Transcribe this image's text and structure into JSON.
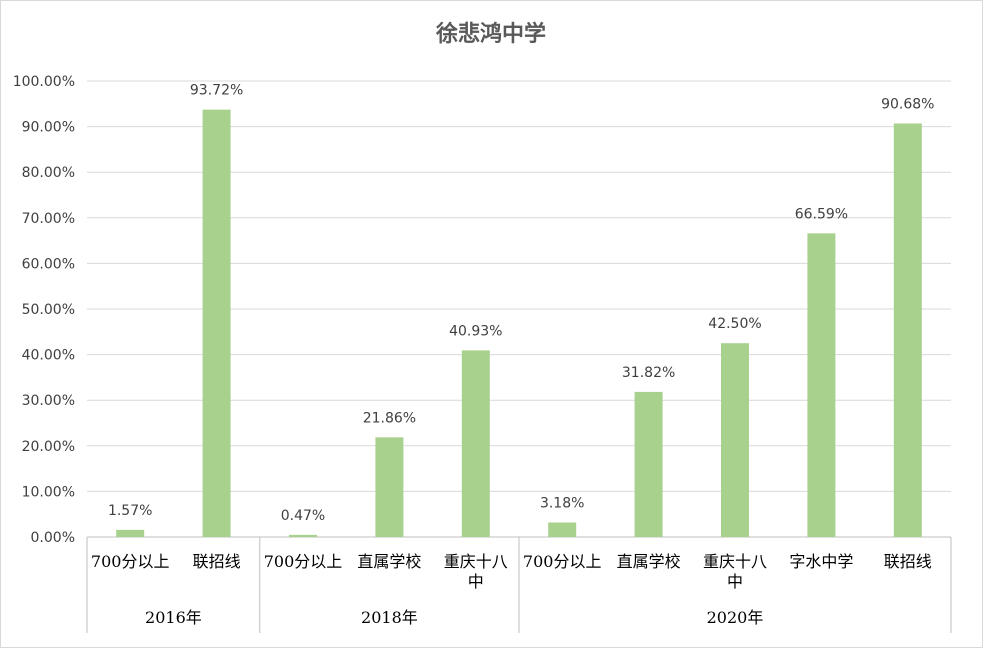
{
  "chart_data": {
    "type": "bar",
    "title": "徐悲鸿中学",
    "ylim": [
      0,
      100
    ],
    "yticks": [
      "0.00%",
      "10.00%",
      "20.00%",
      "30.00%",
      "40.00%",
      "50.00%",
      "60.00%",
      "70.00%",
      "80.00%",
      "90.00%",
      "100.00%"
    ],
    "grid": true,
    "bar_color": "#a9d18e",
    "groups": [
      {
        "label": "2016年",
        "categories": [
          [
            "700分以上"
          ],
          [
            "联招线"
          ]
        ],
        "values": [
          1.57,
          93.72
        ],
        "value_labels": [
          "1.57%",
          "93.72%"
        ]
      },
      {
        "label": "2018年",
        "categories": [
          [
            "700分以上"
          ],
          [
            "直属学校"
          ],
          [
            "重庆十八",
            "中"
          ]
        ],
        "values": [
          0.47,
          21.86,
          40.93
        ],
        "value_labels": [
          "0.47%",
          "21.86%",
          "40.93%"
        ]
      },
      {
        "label": "2020年",
        "categories": [
          [
            "700分以上"
          ],
          [
            "直属学校"
          ],
          [
            "重庆十八",
            "中"
          ],
          [
            "字水中学"
          ],
          [
            "联招线"
          ]
        ],
        "values": [
          3.18,
          31.82,
          42.5,
          66.59,
          90.68
        ],
        "value_labels": [
          "3.18%",
          "31.82%",
          "42.50%",
          "66.59%",
          "90.68%"
        ]
      }
    ]
  }
}
